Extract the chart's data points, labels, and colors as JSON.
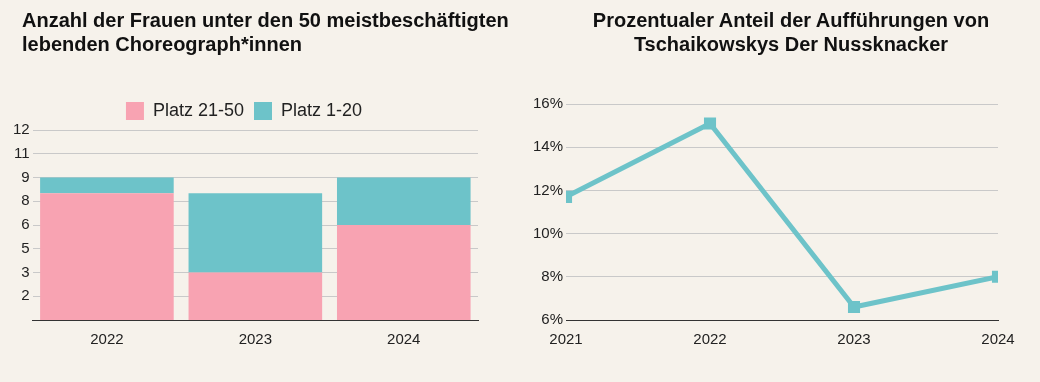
{
  "chart_data": [
    {
      "type": "bar",
      "title": "Anzahl der Frauen unter den 50 meistbeschäftigten lebenden Choreograph*innen",
      "categories": [
        "2022",
        "2023",
        "2024"
      ],
      "stacked": true,
      "series": [
        {
          "name": "Platz 21-50",
          "color": "#f8a3b2",
          "values": [
            8,
            3,
            6
          ]
        },
        {
          "name": "Platz 1-20",
          "color": "#6dc3c9",
          "values": [
            1,
            5,
            3
          ]
        }
      ],
      "ylim": [
        0,
        12
      ],
      "yticks": [
        {
          "value": 1.5,
          "label": "2"
        },
        {
          "value": 3,
          "label": "3"
        },
        {
          "value": 4.5,
          "label": "5"
        },
        {
          "value": 6,
          "label": "6"
        },
        {
          "value": 7.5,
          "label": "8"
        },
        {
          "value": 9,
          "label": "9"
        },
        {
          "value": 10.5,
          "label": "11"
        },
        {
          "value": 12,
          "label": "12"
        }
      ],
      "grid": "y",
      "legend": "top"
    },
    {
      "type": "line",
      "title": "Prozentualer Anteil der Aufführungen von Tschaikowskys Der Nussknacker",
      "x": [
        2021,
        2022,
        2023,
        2024
      ],
      "series": [
        {
          "color": "#6dc3c9",
          "values": [
            11.7,
            15.1,
            6.6,
            8.0
          ]
        }
      ],
      "xlim": [
        2021,
        2024
      ],
      "xticks": [
        2021,
        2022,
        2023,
        2024
      ],
      "ylim": [
        6,
        16
      ],
      "yticks": [
        {
          "value": 6,
          "label": "6%"
        },
        {
          "value": 8,
          "label": "8%"
        },
        {
          "value": 10,
          "label": "10%"
        },
        {
          "value": 12,
          "label": "12%"
        },
        {
          "value": 14,
          "label": "14%"
        },
        {
          "value": 16,
          "label": "16%"
        }
      ],
      "grid": "y",
      "marker": "square",
      "line_style": "solid",
      "legend": false
    }
  ]
}
